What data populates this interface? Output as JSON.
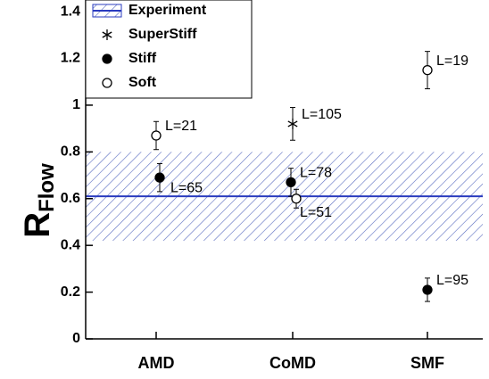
{
  "chart_data": {
    "type": "scatter",
    "y_label": {
      "main": "R",
      "sub": "Flow"
    },
    "categories": [
      "AMD",
      "CoMD",
      "SMF"
    ],
    "ylim": [
      0,
      1.45
    ],
    "yticks": [
      0,
      0.2,
      0.4,
      0.6,
      0.8,
      1,
      1.2,
      1.4
    ],
    "experiment": {
      "name": "Experiment",
      "color": "#2a3bbf",
      "value": 0.61,
      "low": 0.42,
      "high": 0.8
    },
    "series": [
      {
        "name": "SuperStiff",
        "marker": "star",
        "color": "#000000",
        "values": [
          null,
          0.92,
          null
        ],
        "errors": [
          null,
          0.07,
          null
        ],
        "labels": [
          null,
          "L=105",
          null
        ]
      },
      {
        "name": "Stiff",
        "marker": "filled",
        "color": "#000000",
        "values": [
          0.69,
          0.67,
          0.21
        ],
        "errors": [
          0.06,
          0.06,
          0.05
        ],
        "labels": [
          "L=65",
          "L=78",
          "L=95"
        ]
      },
      {
        "name": "Soft",
        "marker": "open",
        "color": "#000000",
        "values": [
          0.87,
          0.6,
          1.15
        ],
        "errors": [
          0.06,
          0.04,
          0.08
        ],
        "labels": [
          "L=21",
          "L=51",
          "L=19"
        ]
      }
    ]
  }
}
